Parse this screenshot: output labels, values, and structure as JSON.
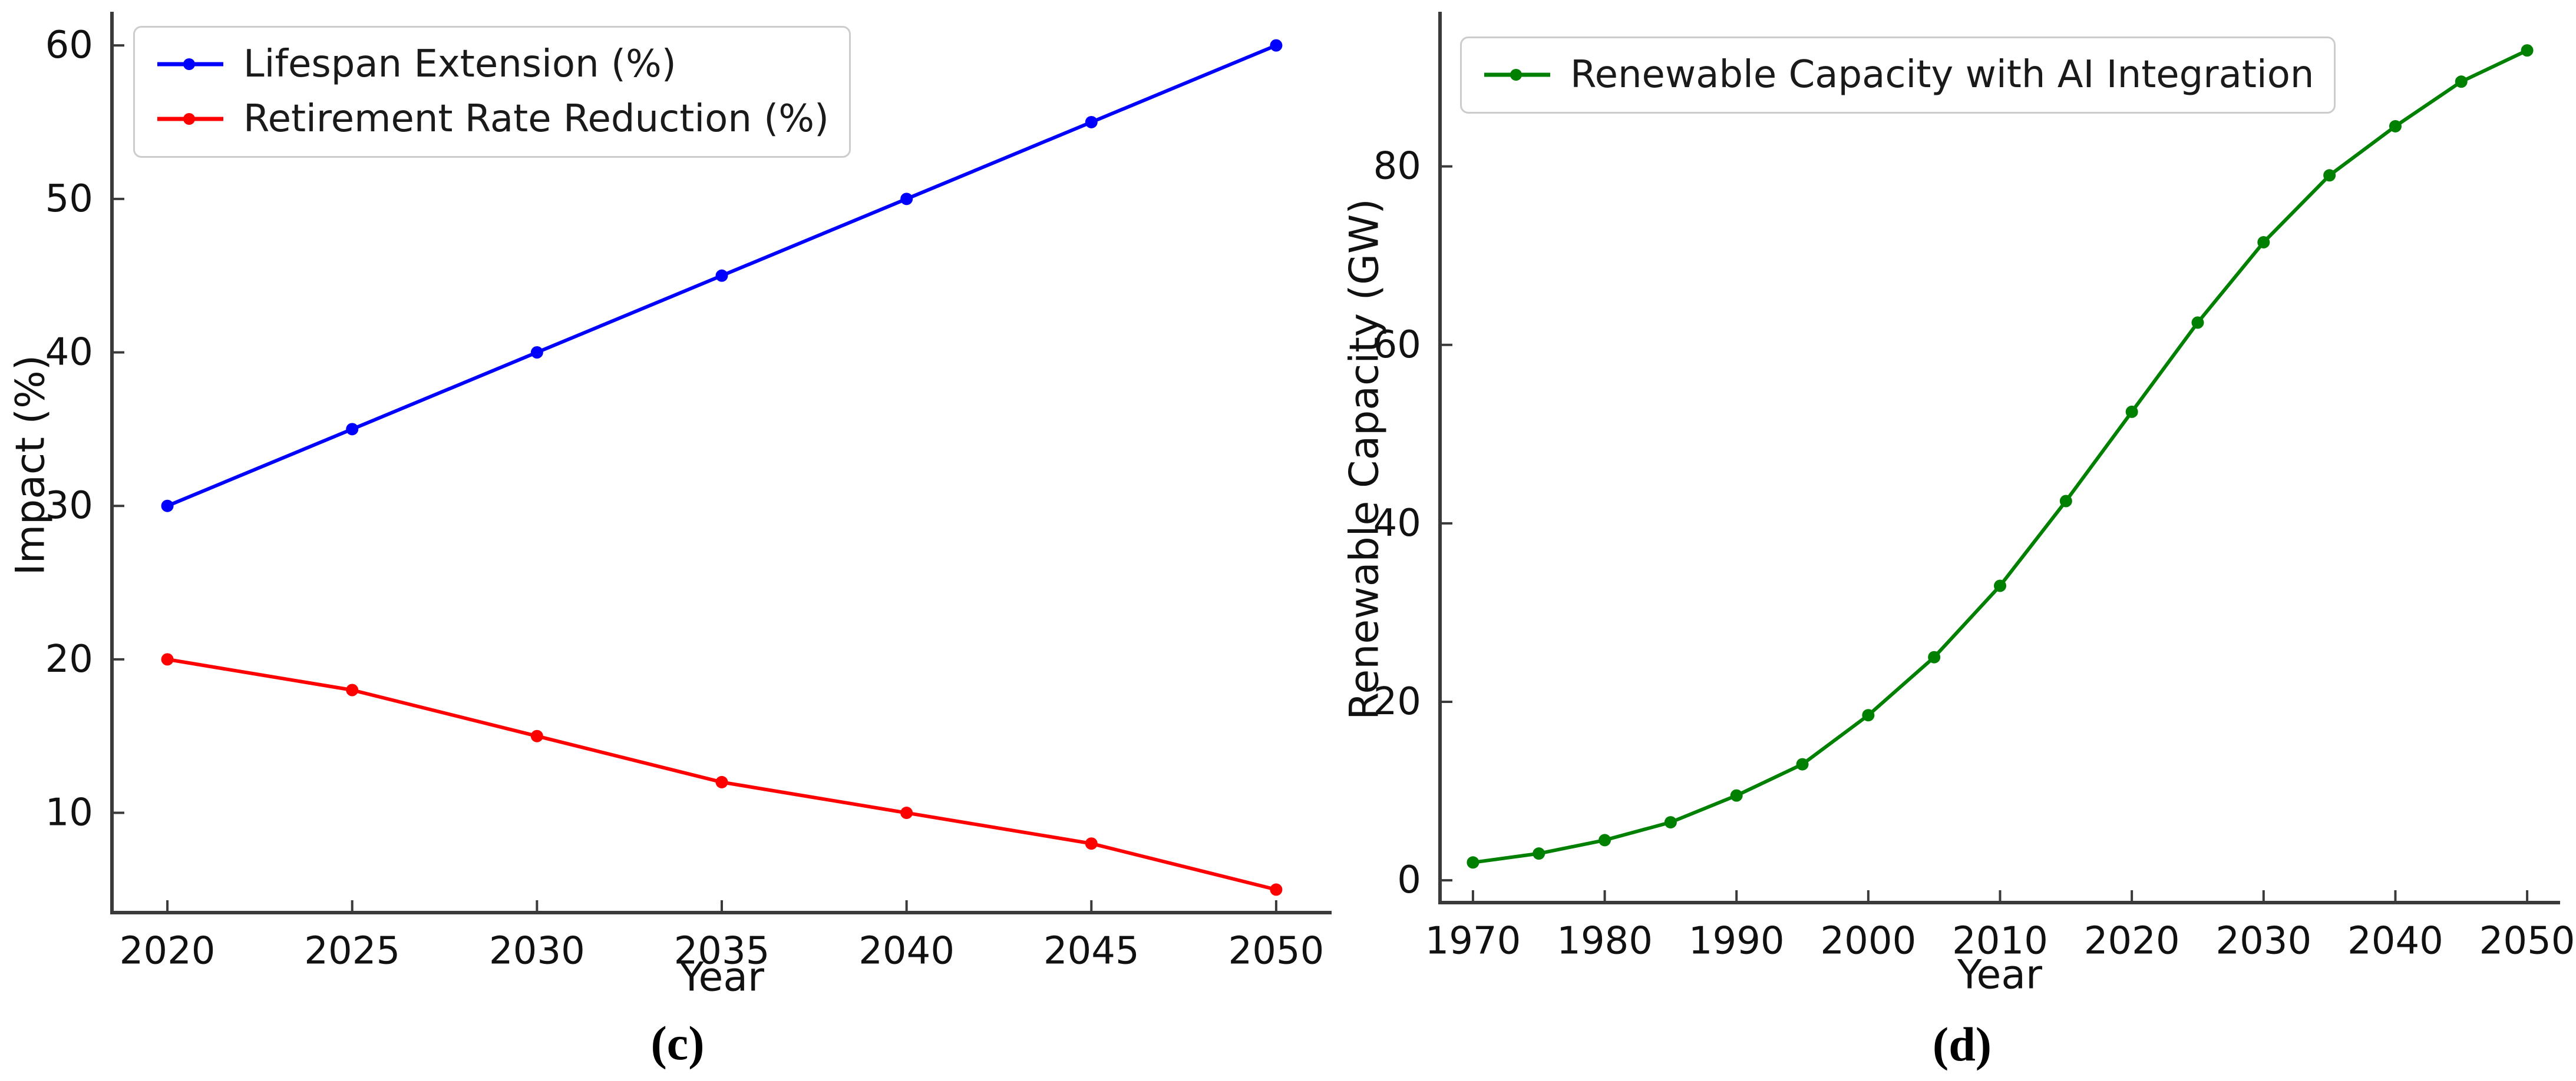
{
  "figure": {
    "background": "#ffffff",
    "panels": [
      {
        "id": "c",
        "caption": "(c)"
      },
      {
        "id": "d",
        "caption": "(d)"
      }
    ]
  },
  "chart_data": [
    {
      "type": "line",
      "panel": "c",
      "title": "",
      "xlabel": "Year",
      "ylabel": "Impact (%)",
      "x": [
        2020,
        2025,
        2030,
        2035,
        2040,
        2045,
        2050
      ],
      "series": [
        {
          "name": "Lifespan Extension (%)",
          "color": "#0000ff",
          "values": [
            30,
            35,
            40,
            45,
            50,
            55,
            60
          ]
        },
        {
          "name": "Retirement Rate Reduction (%)",
          "color": "#ff0000",
          "values": [
            20,
            18,
            15,
            12,
            10,
            8,
            5
          ]
        }
      ],
      "xticks": [
        2020,
        2025,
        2030,
        2035,
        2040,
        2045,
        2050
      ],
      "yticks": [
        10,
        20,
        30,
        40,
        50,
        60
      ],
      "xlim": [
        2018.5,
        2051.5
      ],
      "ylim": [
        3.5,
        62
      ],
      "grid": false,
      "legend_position": "upper left",
      "marker": "circle"
    },
    {
      "type": "line",
      "panel": "d",
      "title": "",
      "xlabel": "Year",
      "ylabel": "Renewable Capacity (GW)",
      "x": [
        1970,
        1975,
        1980,
        1985,
        1990,
        1995,
        2000,
        2005,
        2010,
        2015,
        2020,
        2025,
        2030,
        2035,
        2040,
        2045,
        2050
      ],
      "series": [
        {
          "name": "Renewable Capacity with AI Integration",
          "color": "#008000",
          "values": [
            2,
            3,
            4.5,
            6.5,
            9.5,
            13,
            18.5,
            25,
            33,
            42.5,
            52.5,
            62.5,
            71.5,
            79,
            84.5,
            89.5,
            93
          ]
        }
      ],
      "xticks": [
        1970,
        1980,
        1990,
        2000,
        2010,
        2020,
        2030,
        2040,
        2050
      ],
      "yticks": [
        0,
        20,
        40,
        60,
        80
      ],
      "xlim": [
        1967.5,
        2052.5
      ],
      "ylim": [
        -2.5,
        97
      ],
      "grid": false,
      "legend_position": "upper left",
      "marker": "circle"
    }
  ]
}
